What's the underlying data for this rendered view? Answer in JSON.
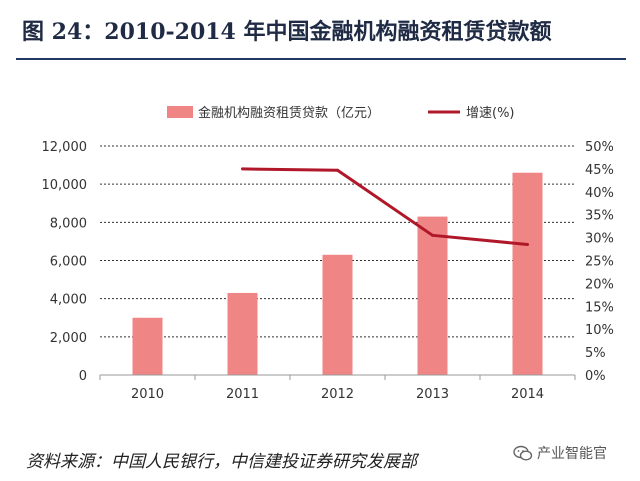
{
  "figure": {
    "title": "图 24：2010-2014 年中国金融机构融资租赁贷款额",
    "source": "资料来源：中国人民银行，中信建投证券研究发展部",
    "watermark_text": "产业智能官"
  },
  "chart_data": {
    "type": "bar",
    "title": "",
    "categories": [
      "2010",
      "2011",
      "2012",
      "2013",
      "2014"
    ],
    "series": [
      {
        "name": "金融机构融资租赁贷款（亿元）",
        "type": "bar",
        "axis": "left",
        "color": "#f08585",
        "values": [
          3000,
          4300,
          6300,
          8300,
          10600
        ]
      },
      {
        "name": "增速(%)",
        "type": "line",
        "axis": "right",
        "color": "#b0182a",
        "values": [
          null,
          45,
          44.7,
          30.5,
          28.5
        ]
      }
    ],
    "y_left": {
      "range": [
        0,
        12000
      ],
      "ticks": [
        0,
        2000,
        4000,
        6000,
        8000,
        10000,
        12000
      ],
      "tick_labels": [
        "0",
        "2,000",
        "4,000",
        "6,000",
        "8,000",
        "10,000",
        "12,000"
      ]
    },
    "y_right": {
      "range": [
        0,
        50
      ],
      "ticks": [
        0,
        5,
        10,
        15,
        20,
        25,
        30,
        35,
        40,
        45,
        50
      ],
      "tick_labels": [
        "0%",
        "5%",
        "10%",
        "15%",
        "20%",
        "25%",
        "30%",
        "35%",
        "40%",
        "45%",
        "50%"
      ]
    },
    "grid": true,
    "legend_position": "top"
  }
}
